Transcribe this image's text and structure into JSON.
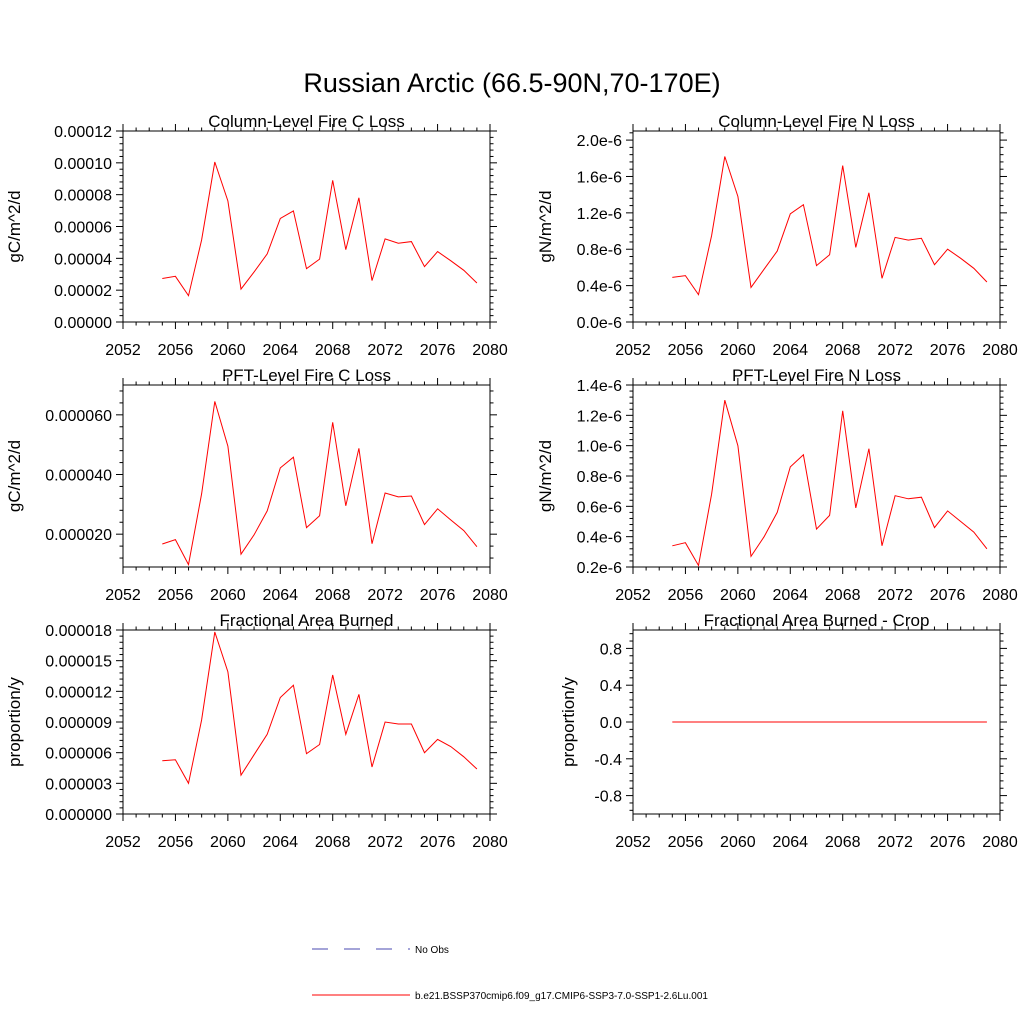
{
  "page": {
    "title": "Russian Arctic (66.5-90N,70-170E)"
  },
  "colors": {
    "series": "#ff0000",
    "obs": "#4a4ab0",
    "axis": "#000000"
  },
  "legend": {
    "placement": "bottom-center",
    "entries": [
      {
        "label": "No Obs",
        "style": "dashed",
        "color": "#4a4ab0"
      },
      {
        "label": "b.e21.BSSP370cmip6.f09_g17.CMIP6-SSP3-7.0-SSP1-2.6Lu.001",
        "style": "solid",
        "color": "#ff0000"
      }
    ]
  },
  "chart_data": [
    {
      "type": "line",
      "title": "Column-Level Fire C Loss",
      "ylabel": "gC/m^2/d",
      "xlim": [
        2052,
        2080
      ],
      "ylim": [
        0,
        0.00012
      ],
      "xticks": [
        2052,
        2056,
        2060,
        2064,
        2068,
        2072,
        2076,
        2080
      ],
      "xtick_labels": [
        "2052",
        "2056",
        "2060",
        "2064",
        "2068",
        "2072",
        "2076",
        "2080"
      ],
      "yticks": [
        0,
        2e-05,
        4e-05,
        6e-05,
        8e-05,
        0.0001,
        0.00012
      ],
      "ytick_labels": [
        "0.00000",
        "0.00002",
        "0.00004",
        "0.00006",
        "0.00008",
        "0.00010",
        "0.00012"
      ],
      "grid": false,
      "x": [
        2055,
        2056,
        2057,
        2058,
        2059,
        2060,
        2061,
        2062,
        2063,
        2064,
        2065,
        2066,
        2067,
        2068,
        2069,
        2070,
        2071,
        2072,
        2073,
        2074,
        2075,
        2076,
        2077,
        2078,
        2079
      ],
      "series": [
        {
          "values": [
            2.73e-05,
            2.87e-05,
            1.65e-05,
            5.15e-05,
            0.0001005,
            7.6e-05,
            2.07e-05,
            3.15e-05,
            4.28e-05,
            6.5e-05,
            6.98e-05,
            3.35e-05,
            3.95e-05,
            8.9e-05,
            4.55e-05,
            7.8e-05,
            2.6e-05,
            5.22e-05,
            4.95e-05,
            5.05e-05,
            3.48e-05,
            4.42e-05,
            3.85e-05,
            3.25e-05,
            2.45e-05
          ]
        }
      ]
    },
    {
      "type": "line",
      "title": "Column-Level Fire N Loss",
      "ylabel": "gN/m^2/d",
      "xlim": [
        2052,
        2080
      ],
      "ylim": [
        0,
        2.1e-06
      ],
      "xticks": [
        2052,
        2056,
        2060,
        2064,
        2068,
        2072,
        2076,
        2080
      ],
      "xtick_labels": [
        "2052",
        "2056",
        "2060",
        "2064",
        "2068",
        "2072",
        "2076",
        "2080"
      ],
      "yticks": [
        0,
        4e-07,
        8e-07,
        1.2e-06,
        1.6e-06,
        2e-06
      ],
      "ytick_labels": [
        "0.0e-6",
        "0.4e-6",
        "0.8e-6",
        "1.2e-6",
        "1.6e-6",
        "2.0e-6"
      ],
      "grid": false,
      "x": [
        2055,
        2056,
        2057,
        2058,
        2059,
        2060,
        2061,
        2062,
        2063,
        2064,
        2065,
        2066,
        2067,
        2068,
        2069,
        2070,
        2071,
        2072,
        2073,
        2074,
        2075,
        2076,
        2077,
        2078,
        2079
      ],
      "series": [
        {
          "values": [
            4.9e-07,
            5.1e-07,
            3e-07,
            9.5e-07,
            1.82e-06,
            1.38e-06,
            3.8e-07,
            5.8e-07,
            7.8e-07,
            1.19e-06,
            1.29e-06,
            6.2e-07,
            7.4e-07,
            1.72e-06,
            8.2e-07,
            1.42e-06,
            4.8e-07,
            9.3e-07,
            9e-07,
            9.2e-07,
            6.3e-07,
            8e-07,
            7e-07,
            5.9e-07,
            4.4e-07
          ]
        }
      ]
    },
    {
      "type": "line",
      "title": "PFT-Level Fire C Loss",
      "ylabel": "gC/m^2/d",
      "xlim": [
        2052,
        2080
      ],
      "ylim": [
        9e-06,
        7e-05
      ],
      "xticks": [
        2052,
        2056,
        2060,
        2064,
        2068,
        2072,
        2076,
        2080
      ],
      "xtick_labels": [
        "2052",
        "2056",
        "2060",
        "2064",
        "2068",
        "2072",
        "2076",
        "2080"
      ],
      "yticks": [
        2e-05,
        4e-05,
        6e-05
      ],
      "ytick_labels": [
        "0.000020",
        "0.000040",
        "0.000060"
      ],
      "grid": false,
      "x": [
        2055,
        2056,
        2057,
        2058,
        2059,
        2060,
        2061,
        2062,
        2063,
        2064,
        2065,
        2066,
        2067,
        2068,
        2069,
        2070,
        2071,
        2072,
        2073,
        2074,
        2075,
        2076,
        2077,
        2078,
        2079
      ],
      "series": [
        {
          "values": [
            1.67e-05,
            1.82e-05,
            9.8e-06,
            3.35e-05,
            6.45e-05,
            4.95e-05,
            1.33e-05,
            1.98e-05,
            2.78e-05,
            4.22e-05,
            4.58e-05,
            2.22e-05,
            2.62e-05,
            5.75e-05,
            2.95e-05,
            4.88e-05,
            1.68e-05,
            3.38e-05,
            3.25e-05,
            3.28e-05,
            2.32e-05,
            2.85e-05,
            2.48e-05,
            2.12e-05,
            1.58e-05
          ]
        }
      ]
    },
    {
      "type": "line",
      "title": "PFT-Level Fire N Loss",
      "ylabel": "gN/m^2/d",
      "xlim": [
        2052,
        2080
      ],
      "ylim": [
        2e-07,
        1.4e-06
      ],
      "xticks": [
        2052,
        2056,
        2060,
        2064,
        2068,
        2072,
        2076,
        2080
      ],
      "xtick_labels": [
        "2052",
        "2056",
        "2060",
        "2064",
        "2068",
        "2072",
        "2076",
        "2080"
      ],
      "yticks": [
        2e-07,
        4e-07,
        6e-07,
        8e-07,
        1e-06,
        1.2e-06,
        1.4e-06
      ],
      "ytick_labels": [
        "0.2e-6",
        "0.4e-6",
        "0.6e-6",
        "0.8e-6",
        "1.0e-6",
        "1.2e-6",
        "1.4e-6"
      ],
      "grid": false,
      "x": [
        2055,
        2056,
        2057,
        2058,
        2059,
        2060,
        2061,
        2062,
        2063,
        2064,
        2065,
        2066,
        2067,
        2068,
        2069,
        2070,
        2071,
        2072,
        2073,
        2074,
        2075,
        2076,
        2077,
        2078,
        2079
      ],
      "series": [
        {
          "values": [
            3.4e-07,
            3.6e-07,
            2.1e-07,
            6.8e-07,
            1.3e-06,
            1e-06,
            2.7e-07,
            4e-07,
            5.6e-07,
            8.6e-07,
            9.4e-07,
            4.5e-07,
            5.4e-07,
            1.23e-06,
            5.9e-07,
            9.8e-07,
            3.4e-07,
            6.7e-07,
            6.5e-07,
            6.6e-07,
            4.6e-07,
            5.7e-07,
            5e-07,
            4.3e-07,
            3.2e-07
          ]
        }
      ]
    },
    {
      "type": "line",
      "title": "Fractional Area Burned",
      "ylabel": "proportion/y",
      "xlim": [
        2052,
        2080
      ],
      "ylim": [
        0,
        1.8e-05
      ],
      "xticks": [
        2052,
        2056,
        2060,
        2064,
        2068,
        2072,
        2076,
        2080
      ],
      "xtick_labels": [
        "2052",
        "2056",
        "2060",
        "2064",
        "2068",
        "2072",
        "2076",
        "2080"
      ],
      "yticks": [
        0,
        3e-06,
        6e-06,
        9e-06,
        1.2e-05,
        1.5e-05,
        1.8e-05
      ],
      "ytick_labels": [
        "0.000000",
        "0.000003",
        "0.000006",
        "0.000009",
        "0.000012",
        "0.000015",
        "0.000018"
      ],
      "grid": false,
      "x": [
        2055,
        2056,
        2057,
        2058,
        2059,
        2060,
        2061,
        2062,
        2063,
        2064,
        2065,
        2066,
        2067,
        2068,
        2069,
        2070,
        2071,
        2072,
        2073,
        2074,
        2075,
        2076,
        2077,
        2078,
        2079
      ],
      "series": [
        {
          "values": [
            5.2e-06,
            5.3e-06,
            3e-06,
            9.2e-06,
            1.78e-05,
            1.39e-05,
            3.8e-06,
            5.8e-06,
            7.8e-06,
            1.14e-05,
            1.26e-05,
            5.9e-06,
            6.8e-06,
            1.36e-05,
            7.8e-06,
            1.17e-05,
            4.6e-06,
            9e-06,
            8.8e-06,
            8.8e-06,
            6e-06,
            7.3e-06,
            6.6e-06,
            5.6e-06,
            4.4e-06
          ]
        }
      ]
    },
    {
      "type": "line",
      "title": "Fractional Area Burned - Crop",
      "ylabel": "proportion/y",
      "xlim": [
        2052,
        2080
      ],
      "ylim": [
        -1,
        1
      ],
      "xticks": [
        2052,
        2056,
        2060,
        2064,
        2068,
        2072,
        2076,
        2080
      ],
      "xtick_labels": [
        "2052",
        "2056",
        "2060",
        "2064",
        "2068",
        "2072",
        "2076",
        "2080"
      ],
      "yticks": [
        -0.8,
        -0.4,
        0,
        0.4,
        0.8
      ],
      "ytick_labels": [
        "-0.8",
        "-0.4",
        "0.0",
        "0.4",
        "0.8"
      ],
      "grid": false,
      "x": [
        2055,
        2056,
        2057,
        2058,
        2059,
        2060,
        2061,
        2062,
        2063,
        2064,
        2065,
        2066,
        2067,
        2068,
        2069,
        2070,
        2071,
        2072,
        2073,
        2074,
        2075,
        2076,
        2077,
        2078,
        2079
      ],
      "series": [
        {
          "values": [
            0,
            0,
            0,
            0,
            0,
            0,
            0,
            0,
            0,
            0,
            0,
            0,
            0,
            0,
            0,
            0,
            0,
            0,
            0,
            0,
            0,
            0,
            0,
            0,
            0
          ]
        }
      ]
    }
  ]
}
